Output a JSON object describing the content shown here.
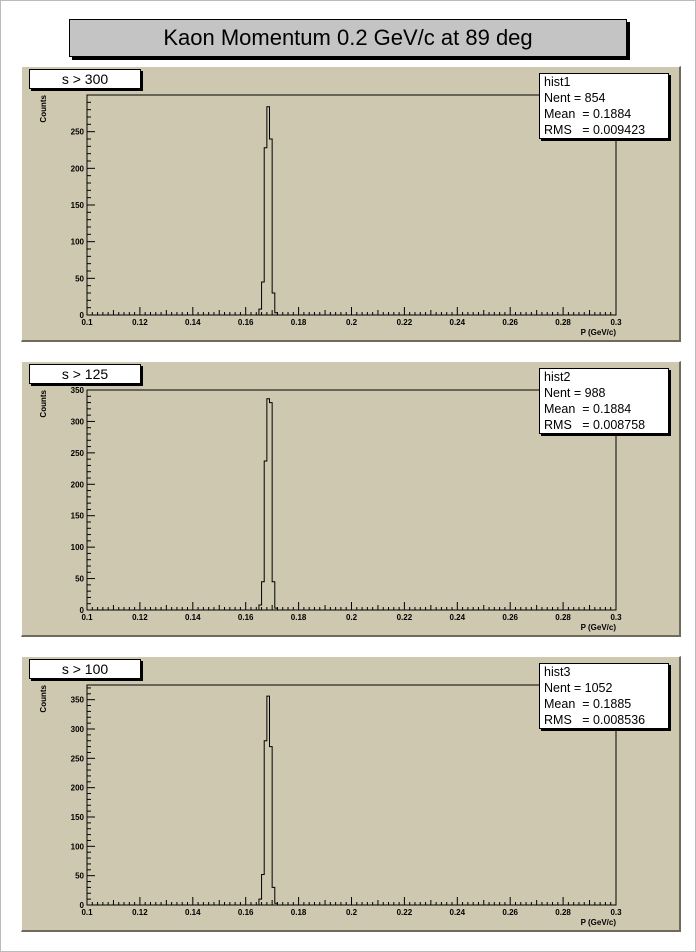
{
  "title": "Kaon Momentum 0.2 GeV/c at 89 deg",
  "chart_data": [
    {
      "type": "bar",
      "label": "s > 300",
      "stats": {
        "name": "hist1",
        "nent": "Nent = 854",
        "mean": "Mean  = 0.1884",
        "rms": "RMS   = 0.009423"
      },
      "xlabel": "P (GeV/c)",
      "ylabel": "Counts",
      "xlim": [
        0.1,
        0.3
      ],
      "ylim": [
        0,
        300
      ],
      "xticks": [
        "0.1",
        "0.12",
        "0.14",
        "0.16",
        "0.18",
        "0.2",
        "0.22",
        "0.24",
        "0.26",
        "0.28",
        "0.3"
      ],
      "yticks": [
        "0",
        "50",
        "100",
        "150",
        "200",
        "250"
      ],
      "bin_width": 0.001,
      "bins": [
        {
          "x": 0.165,
          "y": 8
        },
        {
          "x": 0.166,
          "y": 45
        },
        {
          "x": 0.167,
          "y": 228
        },
        {
          "x": 0.168,
          "y": 284
        },
        {
          "x": 0.169,
          "y": 240
        },
        {
          "x": 0.17,
          "y": 30
        },
        {
          "x": 0.171,
          "y": 3
        }
      ]
    },
    {
      "type": "bar",
      "label": "s > 125",
      "stats": {
        "name": "hist2",
        "nent": "Nent = 988",
        "mean": "Mean  = 0.1884",
        "rms": "RMS   = 0.008758"
      },
      "xlabel": "P (GeV/c)",
      "ylabel": "Counts",
      "xlim": [
        0.1,
        0.3
      ],
      "ylim": [
        0,
        350
      ],
      "xticks": [
        "0.1",
        "0.12",
        "0.14",
        "0.16",
        "0.18",
        "0.2",
        "0.22",
        "0.24",
        "0.26",
        "0.28",
        "0.3"
      ],
      "yticks": [
        "0",
        "50",
        "100",
        "150",
        "200",
        "250",
        "300",
        "350"
      ],
      "bin_width": 0.001,
      "bins": [
        {
          "x": 0.165,
          "y": 8
        },
        {
          "x": 0.166,
          "y": 45
        },
        {
          "x": 0.167,
          "y": 237
        },
        {
          "x": 0.168,
          "y": 336
        },
        {
          "x": 0.169,
          "y": 330
        },
        {
          "x": 0.17,
          "y": 45
        },
        {
          "x": 0.171,
          "y": 3
        }
      ]
    },
    {
      "type": "bar",
      "label": "s > 100",
      "stats": {
        "name": "hist3",
        "nent": "Nent = 1052",
        "mean": "Mean  = 0.1885",
        "rms": "RMS   = 0.008536"
      },
      "xlabel": "P (GeV/c)",
      "ylabel": "Counts",
      "xlim": [
        0.1,
        0.3
      ],
      "ylim": [
        0,
        375
      ],
      "xticks": [
        "0.1",
        "0.12",
        "0.14",
        "0.16",
        "0.18",
        "0.2",
        "0.22",
        "0.24",
        "0.26",
        "0.28",
        "0.3"
      ],
      "yticks": [
        "0",
        "50",
        "100",
        "150",
        "200",
        "250",
        "300",
        "350"
      ],
      "bin_width": 0.001,
      "bins": [
        {
          "x": 0.165,
          "y": 10
        },
        {
          "x": 0.166,
          "y": 52
        },
        {
          "x": 0.167,
          "y": 280
        },
        {
          "x": 0.168,
          "y": 356
        },
        {
          "x": 0.169,
          "y": 270
        },
        {
          "x": 0.17,
          "y": 30
        },
        {
          "x": 0.171,
          "y": 3
        }
      ]
    }
  ]
}
